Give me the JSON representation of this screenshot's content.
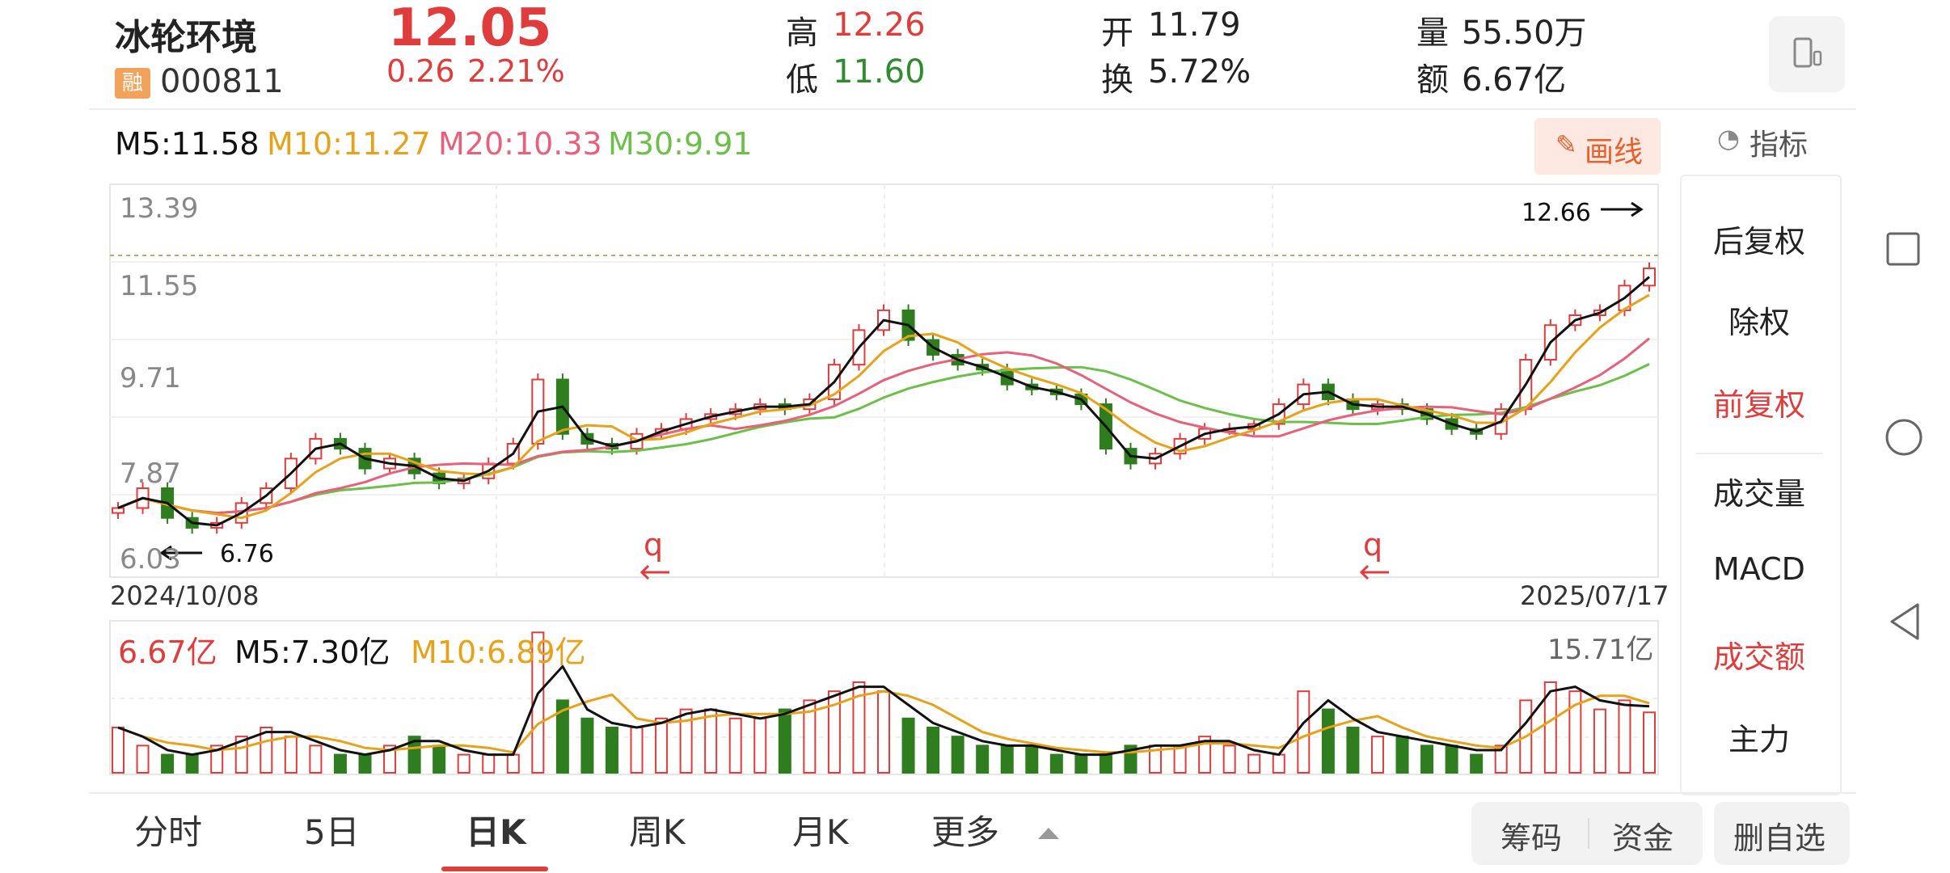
{
  "stock": {
    "name": "冰轮环境",
    "badge": "融",
    "code": "000811",
    "price": "12.05",
    "change": "0.26",
    "change_pct": "2.21%",
    "high_label": "高",
    "high": "12.26",
    "low_label": "低",
    "low": "11.60",
    "open_label": "开",
    "open": "11.79",
    "turnover_label": "换",
    "turnover": "5.72%",
    "volume_label": "量",
    "volume": "55.50万",
    "amount_label": "额",
    "amount": "6.67亿"
  },
  "ma": {
    "m5": "M5:11.58",
    "m10": "M10:11.27",
    "m20": "M20:10.33",
    "m30": "M30:9.91"
  },
  "draw_button": "画线",
  "indicator_button": "指标",
  "price_axis": [
    "13.39",
    "11.55",
    "9.71",
    "7.87",
    "6.03"
  ],
  "max_label": "12.66",
  "min_label": "6.76",
  "markers": [
    "q",
    "q"
  ],
  "date_start": "2024/10/08",
  "date_end": "2025/07/17",
  "volume_panel": {
    "amount": "6.67亿",
    "m5": "M5:7.30亿",
    "m10": "M10:6.89亿",
    "max": "15.71亿"
  },
  "side_menu": [
    {
      "label": "后复权",
      "active": false
    },
    {
      "label": "除权",
      "active": false
    },
    {
      "label": "前复权",
      "active": true
    },
    {
      "label": "成交量",
      "active": false
    },
    {
      "label": "MACD",
      "active": false
    },
    {
      "label": "成交额",
      "active": true
    },
    {
      "label": "主力",
      "active": false
    }
  ],
  "tabs": [
    {
      "label": "分时",
      "active": false
    },
    {
      "label": "5日",
      "active": false
    },
    {
      "label": "日K",
      "active": true
    },
    {
      "label": "周K",
      "active": false
    },
    {
      "label": "月K",
      "active": false
    },
    {
      "label": "更多",
      "active": false
    }
  ],
  "bottom_buttons": {
    "chips": "筹码",
    "funds": "资金",
    "remove": "删自选"
  },
  "colors": {
    "up": "#e03c3c",
    "down": "#2e7d1e",
    "ma5": "#111111",
    "ma10": "#e8a21a",
    "ma20": "#e8607a",
    "ma30": "#6cc04a"
  },
  "chart_data": {
    "type": "candlestick",
    "x_range": [
      "2024/10/08",
      "2025/07/17"
    ],
    "ylim": [
      6.03,
      13.39
    ],
    "close_approx": [
      7.2,
      7.6,
      7.0,
      6.8,
      6.9,
      7.3,
      7.6,
      8.2,
      8.6,
      8.4,
      8.0,
      8.2,
      7.9,
      7.7,
      7.8,
      8.1,
      8.5,
      9.8,
      8.7,
      8.5,
      8.4,
      8.7,
      8.8,
      9.0,
      9.1,
      9.2,
      9.3,
      9.2,
      9.4,
      10.1,
      10.8,
      11.2,
      10.6,
      10.3,
      10.1,
      10.0,
      9.7,
      9.6,
      9.5,
      9.3,
      8.4,
      8.1,
      8.3,
      8.6,
      8.8,
      8.8,
      8.9,
      9.3,
      9.7,
      9.4,
      9.2,
      9.3,
      9.2,
      9.0,
      8.8,
      8.7,
      9.2,
      10.2,
      10.9,
      11.1,
      11.2,
      11.7,
      12.05
    ],
    "volume_approx_yi": [
      5,
      3,
      2,
      2,
      3,
      4,
      5,
      4,
      3,
      2,
      2,
      3,
      4,
      3,
      2,
      2,
      2,
      15.5,
      8,
      6,
      5,
      5,
      6,
      7,
      7,
      6,
      6,
      7,
      8,
      9,
      10,
      9,
      6,
      5,
      4,
      3,
      3,
      3,
      2,
      2,
      2,
      3,
      3,
      3,
      4,
      3,
      2,
      2,
      9,
      7,
      5,
      4,
      4,
      3,
      3,
      2,
      3,
      8,
      10,
      9,
      7,
      8,
      6.67
    ],
    "volume_max": "15.71亿"
  }
}
